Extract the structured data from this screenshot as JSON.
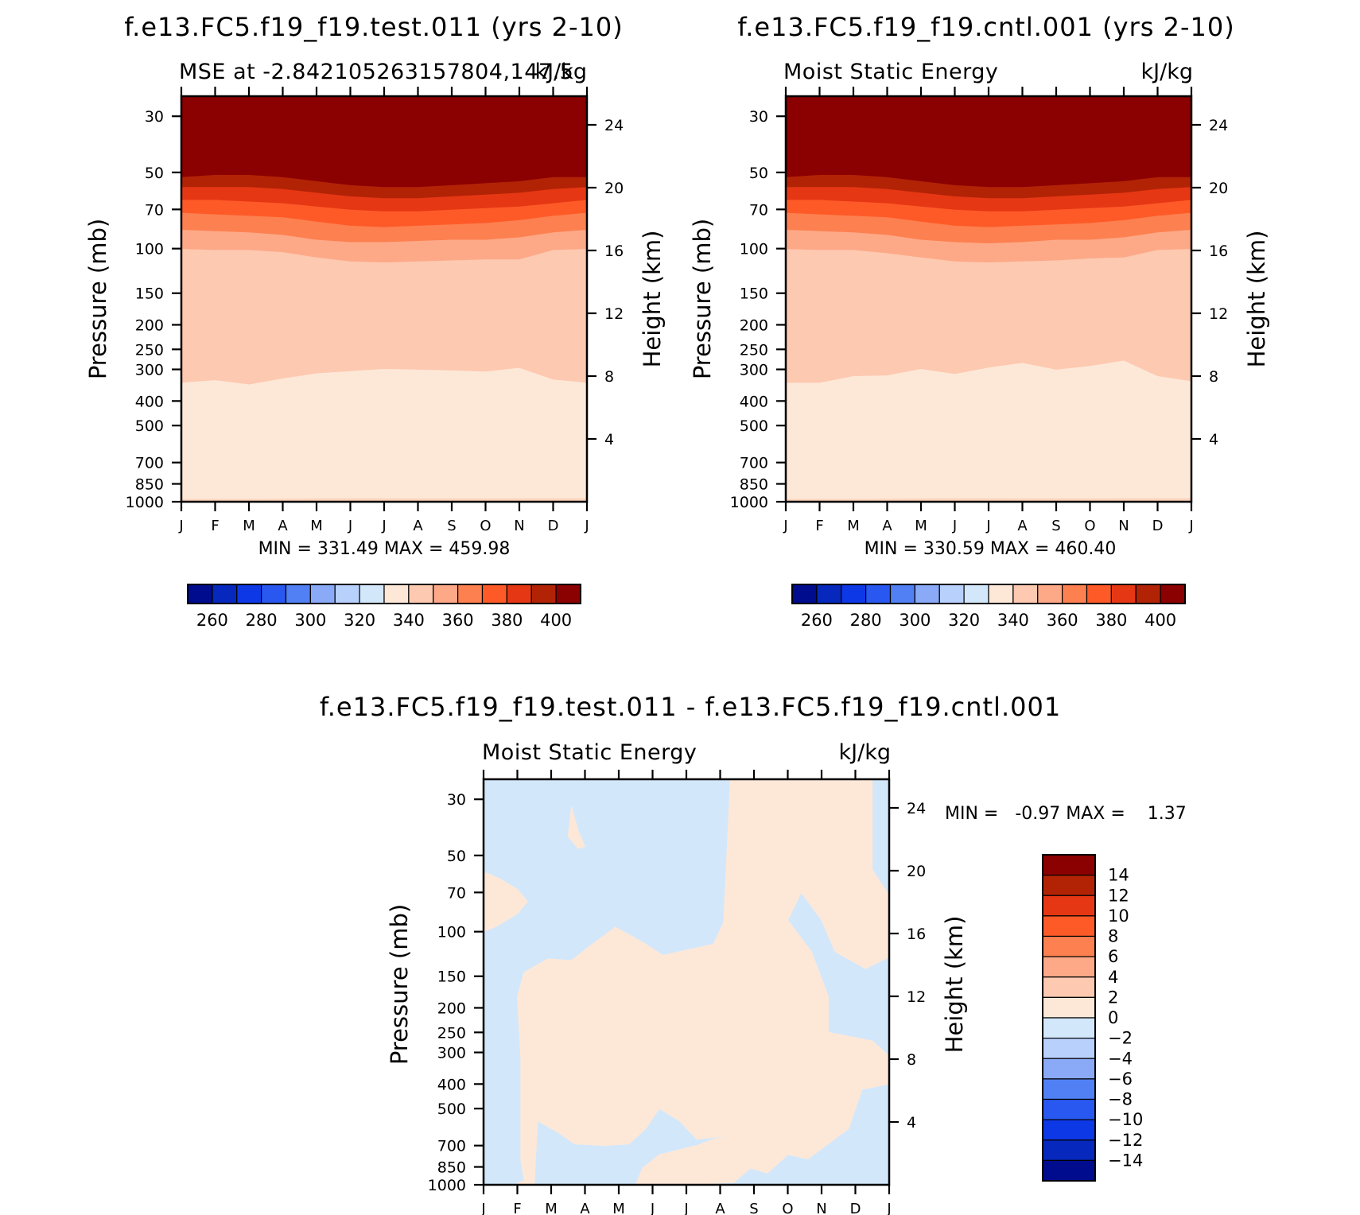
{
  "chart_data": [
    {
      "type": "heatmap",
      "case_title": "f.e13.FC5.f19_f19.test.011 (yrs 2-10)",
      "title": "MSE at -2.842105263157804,147.5",
      "units": "kJ/kg",
      "ylabel": "Pressure (mb)",
      "ylabel_right": "Height (km)",
      "x_ticks": [
        "J",
        "F",
        "M",
        "A",
        "M",
        "J",
        "J",
        "A",
        "S",
        "O",
        "N",
        "D",
        "J"
      ],
      "y_ticks": [
        30,
        50,
        70,
        100,
        150,
        200,
        250,
        300,
        400,
        500,
        700,
        850,
        1000
      ],
      "y_ticks_right": [
        24,
        20,
        16,
        12,
        8,
        4
      ],
      "y_range_mb": [
        25,
        1000
      ],
      "stats_text": "MIN = 331.49 MAX = 459.98",
      "min": 331.49,
      "max": 459.98,
      "colorbar_labels": [
        "260",
        "280",
        "300",
        "320",
        "340",
        "360",
        "380",
        "400"
      ],
      "levels_mb": [
        1000,
        950,
        926,
        340,
        104,
        86,
        74,
        64,
        58,
        52
      ],
      "boundaries_mb": [
        [
          972,
          972,
          972,
          970,
          968,
          966,
          967,
          968,
          968,
          968,
          967,
          966,
          966
        ],
        [
          338,
          330,
          343,
          325,
          310,
          304,
          298,
          300,
          302,
          305,
          295,
          328,
          338
        ],
        [
          100,
          101,
          101,
          103,
          108,
          112,
          113,
          112,
          111,
          110,
          110,
          101,
          100
        ],
        [
          84,
          85,
          86,
          88,
          92,
          94,
          94,
          93,
          92,
          92,
          90,
          86,
          84
        ],
        [
          72,
          73,
          74,
          75,
          78,
          81,
          82,
          81,
          80,
          79,
          77,
          74,
          72
        ],
        [
          64,
          64,
          65,
          66,
          68,
          70,
          71,
          71,
          70,
          69,
          68,
          66,
          64
        ],
        [
          57,
          57,
          57,
          58,
          60,
          62,
          63,
          63,
          62,
          61,
          60,
          58,
          57
        ],
        [
          52,
          51,
          51,
          52,
          54,
          56,
          57,
          57,
          56,
          55,
          54,
          52,
          52
        ]
      ],
      "band_colors": [
        "#fdd3bb",
        "#fde8d8",
        "#fdc9b0",
        "#fda988",
        "#fd8050",
        "#fe5a28",
        "#e63714",
        "#b22306",
        "#8b0000"
      ]
    },
    {
      "type": "heatmap",
      "case_title": "f.e13.FC5.f19_f19.cntl.001 (yrs 2-10)",
      "title": "Moist Static Energy",
      "units": "kJ/kg",
      "ylabel": "Pressure (mb)",
      "ylabel_right": "Height (km)",
      "x_ticks": [
        "J",
        "F",
        "M",
        "A",
        "M",
        "J",
        "J",
        "A",
        "S",
        "O",
        "N",
        "D",
        "J"
      ],
      "y_ticks": [
        30,
        50,
        70,
        100,
        150,
        200,
        250,
        300,
        400,
        500,
        700,
        850,
        1000
      ],
      "y_ticks_right": [
        24,
        20,
        16,
        12,
        8,
        4
      ],
      "y_range_mb": [
        25,
        1000
      ],
      "stats_text": "MIN = 330.59 MAX = 460.40",
      "min": 330.59,
      "max": 460.4,
      "colorbar_labels": [
        "260",
        "280",
        "300",
        "320",
        "340",
        "360",
        "380",
        "400"
      ],
      "boundaries_mb": [
        [
          972,
          972,
          972,
          970,
          968,
          966,
          967,
          968,
          968,
          968,
          967,
          966,
          966
        ],
        [
          338,
          338,
          318,
          316,
          298,
          312,
          294,
          282,
          300,
          290,
          276,
          318,
          333
        ],
        [
          100,
          101,
          101,
          104,
          108,
          112,
          113,
          112,
          111,
          109,
          108,
          101,
          100
        ],
        [
          84,
          85,
          86,
          88,
          92,
          94,
          95,
          94,
          92,
          92,
          90,
          86,
          84
        ],
        [
          72,
          73,
          74,
          75,
          78,
          81,
          82,
          81,
          80,
          79,
          77,
          74,
          72
        ],
        [
          64,
          64,
          65,
          66,
          68,
          70,
          71,
          71,
          70,
          69,
          68,
          66,
          64
        ],
        [
          57,
          57,
          57,
          58,
          60,
          62,
          63,
          63,
          62,
          61,
          60,
          58,
          57
        ],
        [
          52,
          51,
          51,
          52,
          54,
          56,
          57,
          57,
          56,
          55,
          54,
          52,
          52
        ]
      ],
      "band_colors": [
        "#fdd3bb",
        "#fde8d8",
        "#fdc9b0",
        "#fda988",
        "#fd8050",
        "#fe5a28",
        "#e63714",
        "#b22306",
        "#8b0000"
      ]
    },
    {
      "type": "heatmap",
      "case_title": "f.e13.FC5.f19_f19.test.011 - f.e13.FC5.f19_f19.cntl.001",
      "title": "Moist Static Energy",
      "units": "kJ/kg",
      "ylabel": "Pressure (mb)",
      "ylabel_right": "Height (km)",
      "x_ticks": [
        "J",
        "F",
        "M",
        "A",
        "M",
        "J",
        "J",
        "A",
        "S",
        "O",
        "N",
        "D",
        "J"
      ],
      "y_ticks": [
        30,
        50,
        70,
        100,
        150,
        200,
        250,
        300,
        400,
        500,
        700,
        850,
        1000
      ],
      "y_ticks_right": [
        24,
        20,
        16,
        12,
        8,
        4
      ],
      "y_range_mb": [
        25,
        1000
      ],
      "stats_text": "MIN =   -0.97 MAX =    1.37",
      "min": -0.97,
      "max": 1.37,
      "colorbar_labels": [
        "14",
        "12",
        "10",
        "8",
        "6",
        "4",
        "2",
        "0",
        "-2",
        "-4",
        "-6",
        "-8",
        "-10",
        "-12",
        "-14"
      ],
      "colorbar_colors": [
        "#8b0000",
        "#b22306",
        "#e63714",
        "#fe5a28",
        "#fd8050",
        "#fda988",
        "#fdc9b0",
        "#fde8d8",
        "#d3e7fb",
        "#b7d0fc",
        "#8aaaf8",
        "#5080f4",
        "#2858f0",
        "#0d38e6",
        "#0628bc",
        "#000c8e"
      ],
      "positive_color": "#fde8d8",
      "negative_color": "#d3e7fb",
      "background": "negative",
      "positive_regions": [
        [
          [
            0,
            58
          ],
          [
            0.5,
            62
          ],
          [
            1,
            68
          ],
          [
            1.3,
            76
          ],
          [
            1,
            85
          ],
          [
            0.4,
            95
          ],
          [
            0,
            100
          ]
        ],
        [
          [
            2.6,
            32
          ],
          [
            2.8,
            40
          ],
          [
            3.0,
            46
          ],
          [
            2.8,
            47
          ],
          [
            2.5,
            42
          ]
        ],
        [
          [
            7.3,
            25
          ],
          [
            8.0,
            25
          ],
          [
            7.8,
            60
          ],
          [
            7.9,
            90
          ],
          [
            7.6,
            120
          ],
          [
            8.2,
            220
          ],
          [
            8.0,
            320
          ],
          [
            8.4,
            460
          ],
          [
            7.8,
            600
          ],
          [
            7.4,
            640
          ],
          [
            6.3,
            660
          ],
          [
            5.8,
            560
          ],
          [
            5.2,
            500
          ],
          [
            4.8,
            600
          ],
          [
            4.3,
            690
          ],
          [
            3.6,
            700
          ],
          [
            2.7,
            690
          ],
          [
            2.2,
            620
          ],
          [
            1.6,
            560
          ],
          [
            1.5,
            1000
          ],
          [
            0.9,
            1000
          ],
          [
            1.2,
            960
          ],
          [
            1.1,
            800
          ],
          [
            1.1,
            320
          ],
          [
            1.0,
            180
          ],
          [
            1.2,
            145
          ],
          [
            1.9,
            128
          ],
          [
            2.6,
            130
          ],
          [
            3.1,
            115
          ],
          [
            3.9,
            96
          ],
          [
            4.8,
            112
          ],
          [
            5.3,
            124
          ],
          [
            6.8,
            112
          ],
          [
            7.1,
            92
          ]
        ],
        [
          [
            7.3,
            25
          ],
          [
            11.5,
            25
          ],
          [
            11.5,
            57
          ],
          [
            12,
            72
          ],
          [
            12,
            126
          ],
          [
            11.3,
            140
          ],
          [
            10.4,
            120
          ],
          [
            10,
            90
          ],
          [
            9.4,
            70
          ],
          [
            9.0,
            90
          ],
          [
            9.7,
            120
          ],
          [
            10.2,
            180
          ],
          [
            10.2,
            250
          ],
          [
            11.5,
            270
          ],
          [
            12,
            310
          ],
          [
            12,
            400
          ],
          [
            11.2,
            420
          ],
          [
            10.8,
            600
          ],
          [
            9.6,
            790
          ],
          [
            9.0,
            760
          ],
          [
            8.4,
            900
          ],
          [
            7.9,
            860
          ],
          [
            7.4,
            980
          ],
          [
            5.8,
            1000
          ],
          [
            4.5,
            1000
          ],
          [
            4.7,
            860
          ],
          [
            5.2,
            760
          ],
          [
            6.3,
            700
          ],
          [
            6.8,
            660
          ],
          [
            7.4,
            640
          ],
          [
            7.8,
            600
          ],
          [
            8.4,
            460
          ],
          [
            8.0,
            320
          ],
          [
            8.2,
            220
          ],
          [
            7.6,
            120
          ],
          [
            7.9,
            90
          ],
          [
            7.8,
            60
          ]
        ]
      ]
    }
  ]
}
